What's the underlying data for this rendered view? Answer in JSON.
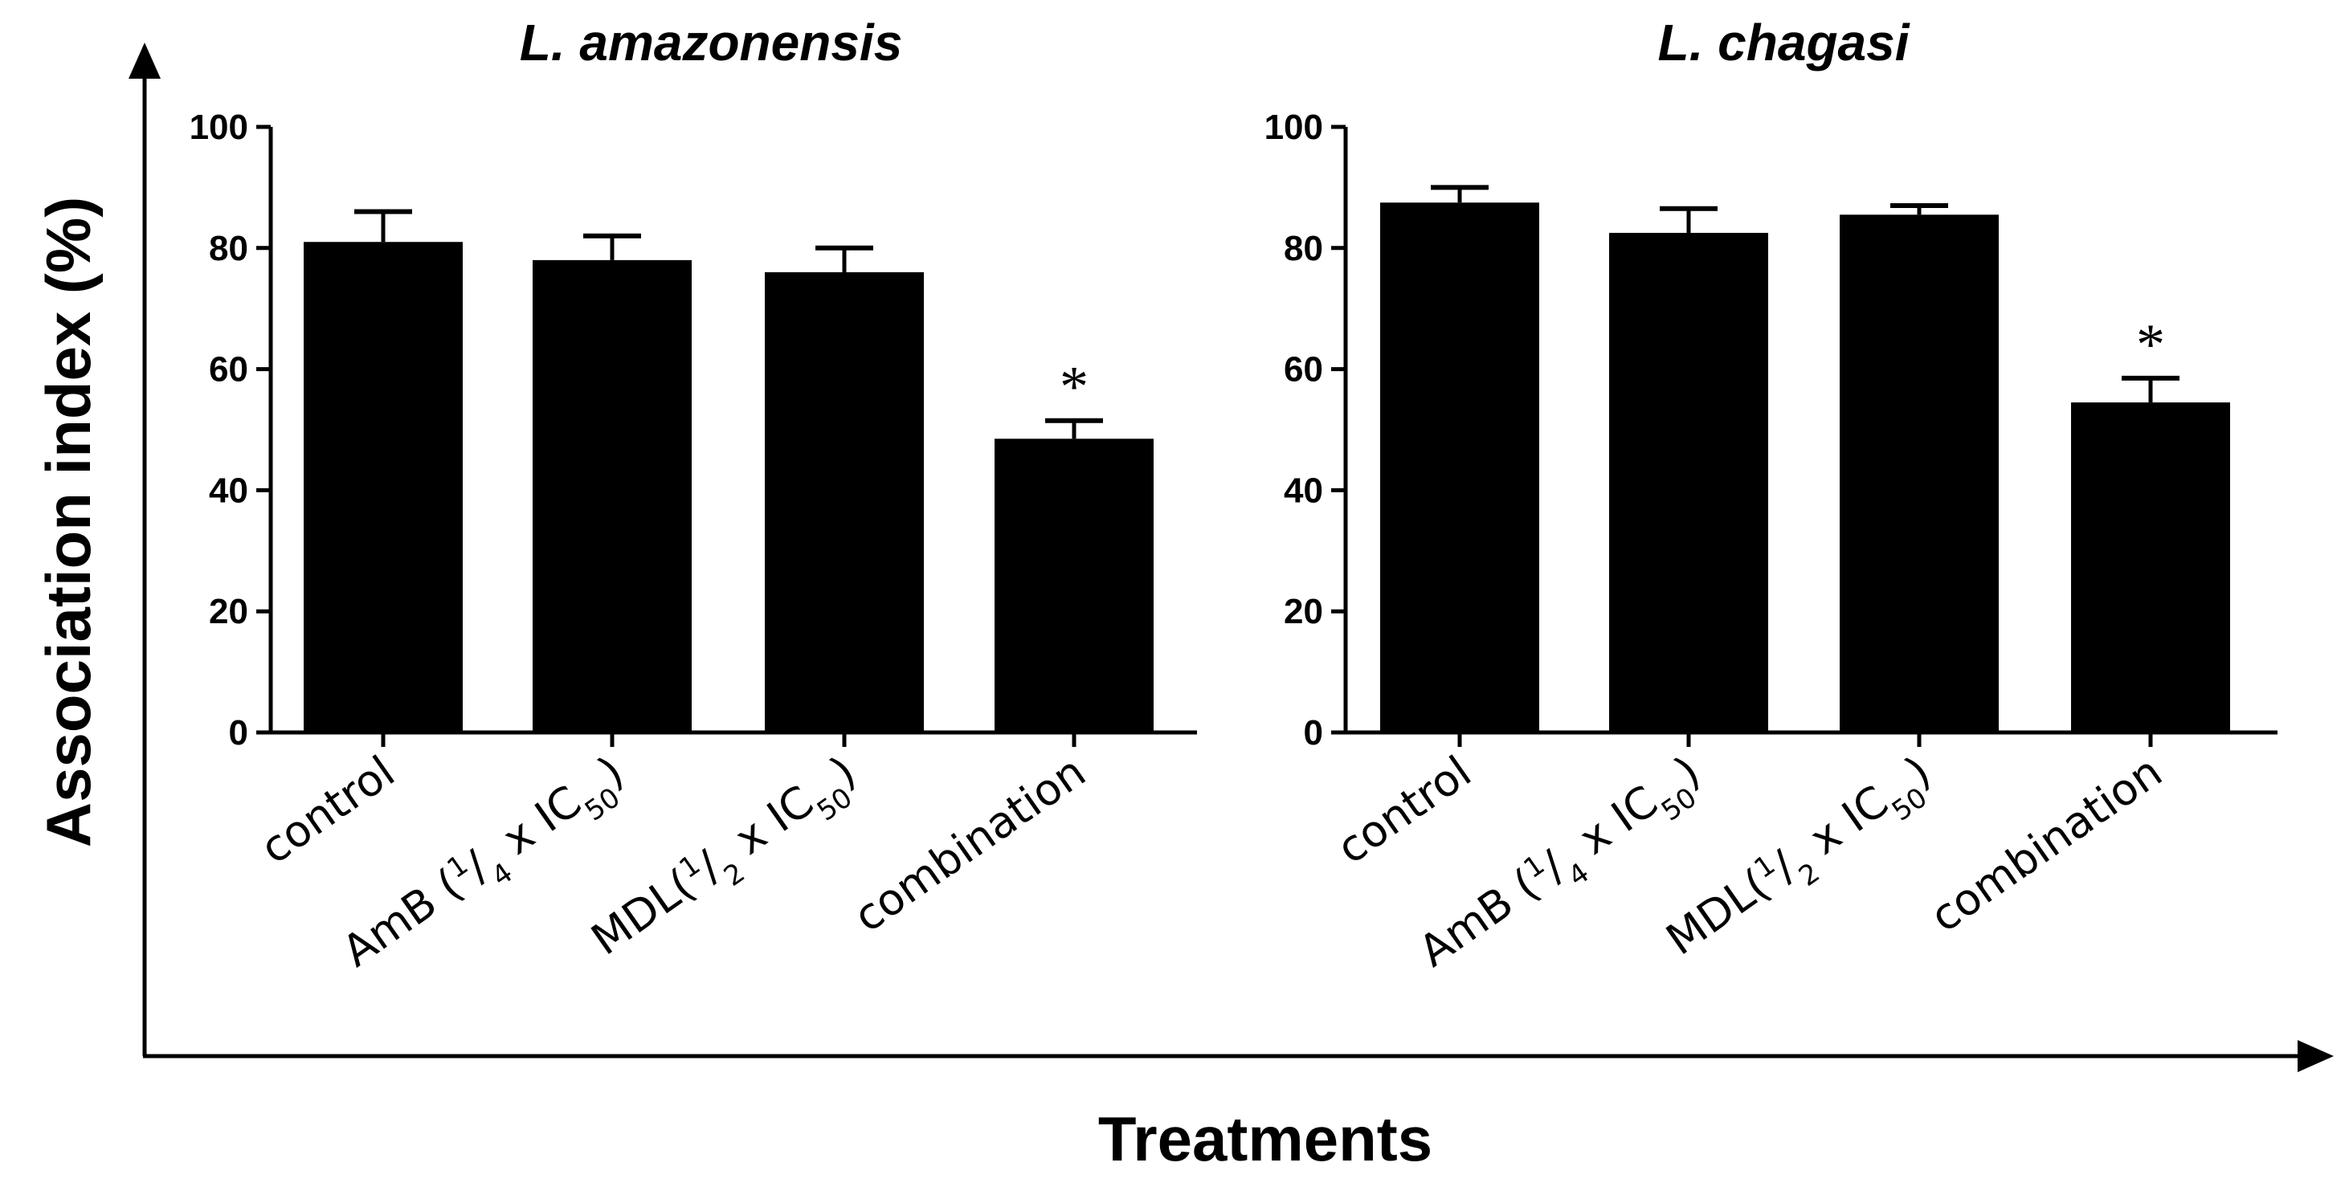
{
  "chart_data": {
    "type": "bar",
    "xlabel": "Treatments",
    "ylabel": "Association index (%)",
    "ylim": [
      0,
      100
    ],
    "yticks": [
      0,
      20,
      40,
      60,
      80,
      100
    ],
    "categories": [
      {
        "parts": [
          {
            "t": "control"
          }
        ]
      },
      {
        "parts": [
          {
            "t": "AmB ("
          },
          {
            "t": "1",
            "sup": true
          },
          {
            "t": "/"
          },
          {
            "t": "4",
            "sub": true
          },
          {
            "t": " x IC"
          },
          {
            "t": "50",
            "sub": true
          },
          {
            "t": ")"
          }
        ]
      },
      {
        "parts": [
          {
            "t": "MDL("
          },
          {
            "t": "1",
            "sup": true
          },
          {
            "t": "/"
          },
          {
            "t": "2",
            "sub": true
          },
          {
            "t": " x IC"
          },
          {
            "t": "50",
            "sub": true
          },
          {
            "t": ")"
          }
        ]
      },
      {
        "parts": [
          {
            "t": "combination"
          }
        ]
      }
    ],
    "panels": [
      {
        "title": "L. amazonensis",
        "values": [
          81,
          78,
          76,
          48.5
        ],
        "errors": [
          5,
          4,
          4,
          3
        ],
        "annotations": [
          "",
          "",
          "",
          "*"
        ]
      },
      {
        "title": "L. chagasi",
        "values": [
          87.5,
          82.5,
          85.5,
          54.5
        ],
        "errors": [
          2.5,
          4,
          1.5,
          4
        ],
        "annotations": [
          "",
          "",
          "",
          "*"
        ]
      }
    ],
    "colors": {
      "bar": "#000000",
      "axis": "#000000"
    }
  }
}
